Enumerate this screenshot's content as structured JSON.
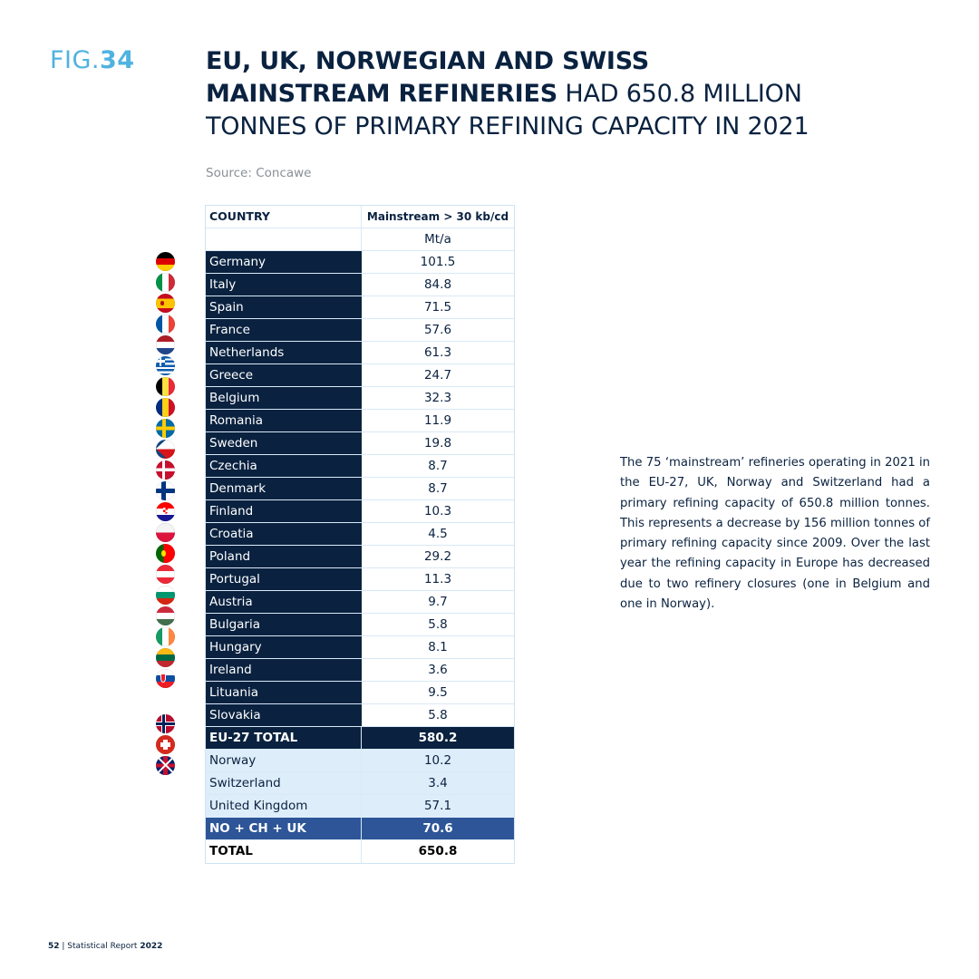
{
  "figure": {
    "prefix": "FIG.",
    "number": "34"
  },
  "title": {
    "bold": "EU, UK, NORWEGIAN AND SWISS MAINSTREAM REFINERIES",
    "rest": " HAD 650.8 MILLION TONNES OF PRIMARY REFINING CAPACITY IN 2021"
  },
  "source": "Source: Concawe",
  "table": {
    "header": {
      "country": "COUNTRY",
      "capacity": "Mainstream > 30 kb/cd",
      "unit": "Mt/a"
    },
    "eu_rows": [
      {
        "country": "Germany",
        "value": "101.5",
        "flag": "germany-flag-icon"
      },
      {
        "country": "Italy",
        "value": "84.8",
        "flag": "italy-flag-icon"
      },
      {
        "country": "Spain",
        "value": "71.5",
        "flag": "spain-flag-icon"
      },
      {
        "country": "France",
        "value": "57.6",
        "flag": "france-flag-icon"
      },
      {
        "country": "Netherlands",
        "value": "61.3",
        "flag": "netherlands-flag-icon"
      },
      {
        "country": "Greece",
        "value": "24.7",
        "flag": "greece-flag-icon"
      },
      {
        "country": "Belgium",
        "value": "32.3",
        "flag": "belgium-flag-icon"
      },
      {
        "country": "Romania",
        "value": "11.9",
        "flag": "romania-flag-icon"
      },
      {
        "country": "Sweden",
        "value": "19.8",
        "flag": "sweden-flag-icon"
      },
      {
        "country": "Czechia",
        "value": "8.7",
        "flag": "czechia-flag-icon"
      },
      {
        "country": "Denmark",
        "value": "8.7",
        "flag": "denmark-flag-icon"
      },
      {
        "country": "Finland",
        "value": "10.3",
        "flag": "finland-flag-icon"
      },
      {
        "country": "Croatia",
        "value": "4.5",
        "flag": "croatia-flag-icon"
      },
      {
        "country": "Poland",
        "value": "29.2",
        "flag": "poland-flag-icon"
      },
      {
        "country": "Portugal",
        "value": "11.3",
        "flag": "portugal-flag-icon"
      },
      {
        "country": "Austria",
        "value": "9.7",
        "flag": "austria-flag-icon"
      },
      {
        "country": "Bulgaria",
        "value": "5.8",
        "flag": "bulgaria-flag-icon"
      },
      {
        "country": "Hungary",
        "value": "8.1",
        "flag": "hungary-flag-icon"
      },
      {
        "country": "Ireland",
        "value": "3.6",
        "flag": "ireland-flag-icon"
      },
      {
        "country": "Lituania",
        "value": "9.5",
        "flag": "lithuania-flag-icon"
      },
      {
        "country": "Slovakia",
        "value": "5.8",
        "flag": "slovakia-flag-icon"
      }
    ],
    "eu_total": {
      "label": "EU-27 TOTAL",
      "value": "580.2"
    },
    "other_rows": [
      {
        "country": "Norway",
        "value": "10.2",
        "flag": "norway-flag-icon"
      },
      {
        "country": "Switzerland",
        "value": "3.4",
        "flag": "switzerland-flag-icon"
      },
      {
        "country": "United Kingdom",
        "value": "57.1",
        "flag": "uk-flag-icon"
      }
    ],
    "other_total": {
      "label": "NO + CH + UK",
      "value": "70.6"
    },
    "grand_total": {
      "label": "TOTAL",
      "value": "650.8"
    }
  },
  "paragraph": "The 75 ‘mainstream’ refineries operating in 2021 in the EU-27, UK, Norway and Switzerland had a primary refining capacity of 650.8 million tonnes. This represents a decrease by 156 million tonnes of primary refining capacity since 2009. Over the last year the refining capacity in Europe has decreased due to two refinery closures (one in Belgium and one in Norway).",
  "footer": {
    "page": "52",
    "separator": " | Statistical Report ",
    "year": "2022"
  },
  "colors": {
    "navy": "#0a2240",
    "accent": "#4fb3e0",
    "light_blue": "#deedfa",
    "mid_blue": "#2d5597"
  }
}
